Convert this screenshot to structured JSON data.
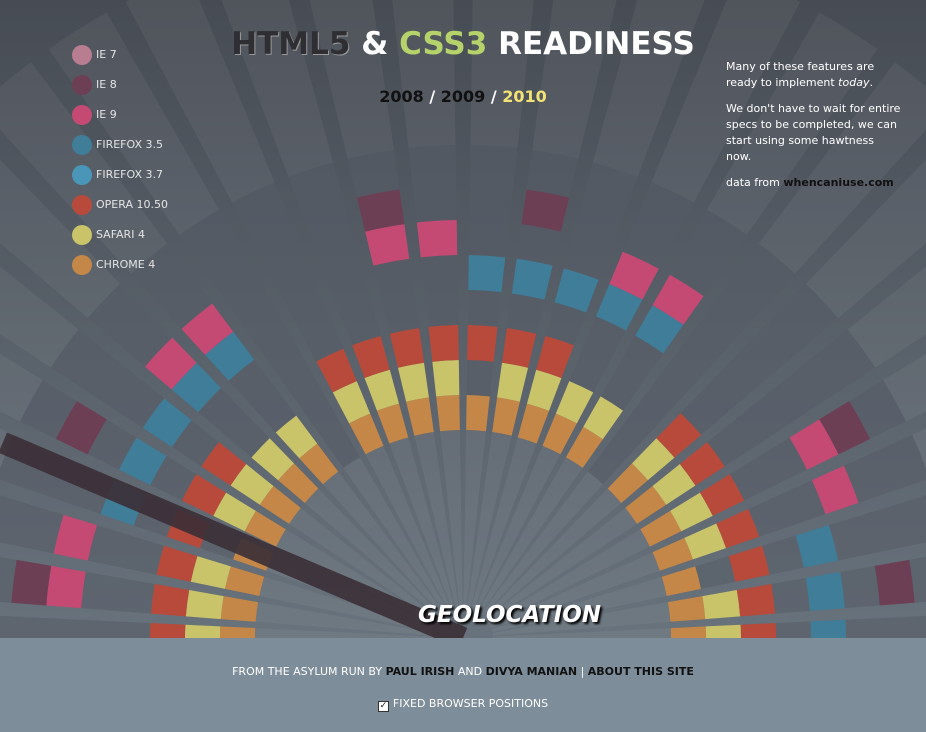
{
  "header": {
    "title": [
      "HTML5",
      "&",
      "CSS3",
      "READINESS"
    ],
    "years": [
      "2008",
      "/",
      "2009",
      "/",
      "2010"
    ]
  },
  "legend": [
    {
      "label": "IE 7",
      "color": "#b87d90"
    },
    {
      "label": "IE 8",
      "color": "#6d3f55"
    },
    {
      "label": "IE 9",
      "color": "#c44a74"
    },
    {
      "label": "FIREFOX 3.5",
      "color": "#3f7d99"
    },
    {
      "label": "FIREFOX 3.7",
      "color": "#4a96b8"
    },
    {
      "label": "OPERA 10.50",
      "color": "#b84a3c"
    },
    {
      "label": "SAFARI 4",
      "color": "#c9c36a"
    },
    {
      "label": "CHROME 4",
      "color": "#c48748"
    }
  ],
  "sidebar": {
    "p1": [
      "Many of these features are ready to implement ",
      "today",
      "."
    ],
    "p2": "We don't have to wait for entire specs to be completed, we can start using some hawtness now.",
    "p3": [
      "data from ",
      "whencaniuse.com"
    ]
  },
  "feature": "GEOLOCATION",
  "footer": {
    "credits": [
      "FROM THE ASYLUM RUN BY ",
      "PAUL IRISH",
      " AND ",
      "DIVYA MANIAN",
      " | ",
      "ABOUT THIS SITE"
    ],
    "checkbox": "FIXED BROWSER POSITIONS"
  }
}
